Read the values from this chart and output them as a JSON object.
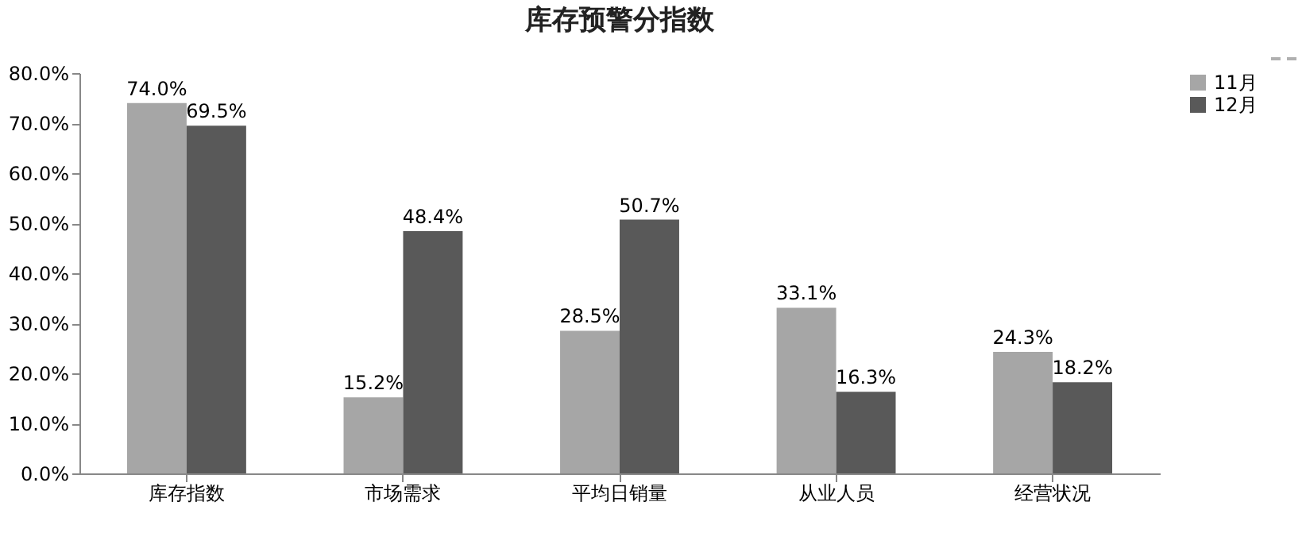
{
  "chart_data": {
    "type": "bar",
    "title": "库存预警分指数",
    "categories": [
      "库存指数",
      "市场需求",
      "平均日销量",
      "从业人员",
      "经营状况"
    ],
    "series": [
      {
        "name": "11月",
        "color": "#a6a6a6",
        "values": [
          74.0,
          15.2,
          28.5,
          33.1,
          24.3
        ],
        "value_labels": [
          "74.0%",
          "15.2%",
          "28.5%",
          "33.1%",
          "24.3%"
        ]
      },
      {
        "name": "12月",
        "color": "#595959",
        "values": [
          69.5,
          48.4,
          50.7,
          16.3,
          18.2
        ],
        "value_labels": [
          "69.5%",
          "48.4%",
          "50.7%",
          "16.3%",
          "18.2%"
        ]
      }
    ],
    "ylim": [
      0,
      80
    ],
    "yticks": [
      {
        "value": 0,
        "label": "0.0%"
      },
      {
        "value": 10,
        "label": "10.0%"
      },
      {
        "value": 20,
        "label": "20.0%"
      },
      {
        "value": 30,
        "label": "30.0%"
      },
      {
        "value": 40,
        "label": "40.0%"
      },
      {
        "value": 50,
        "label": "50.0%"
      },
      {
        "value": 60,
        "label": "60.0%"
      },
      {
        "value": 70,
        "label": "70.0%"
      },
      {
        "value": 80,
        "label": "80.0%"
      }
    ],
    "grid": false,
    "legend": "right"
  }
}
